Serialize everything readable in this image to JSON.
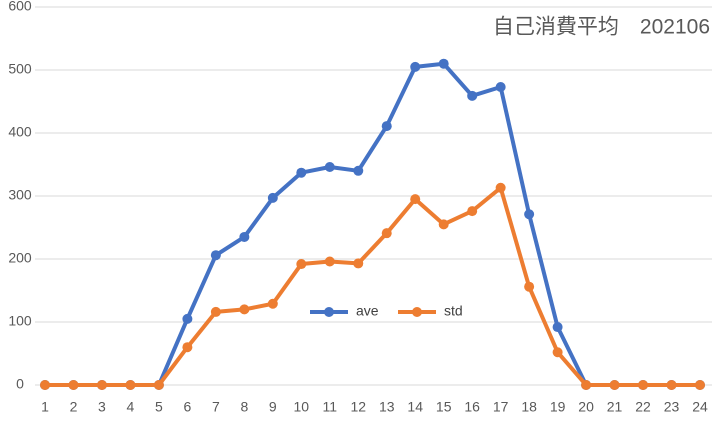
{
  "chart_data": {
    "type": "line",
    "title": "自己消費平均　202106",
    "categories": [
      "1",
      "2",
      "3",
      "4",
      "5",
      "6",
      "7",
      "8",
      "9",
      "10",
      "11",
      "12",
      "13",
      "14",
      "15",
      "16",
      "17",
      "18",
      "19",
      "20",
      "21",
      "22",
      "23",
      "24"
    ],
    "series": [
      {
        "name": "ave",
        "color": "#4472c4",
        "values": [
          0,
          0,
          0,
          0,
          0,
          105,
          206,
          235,
          297,
          337,
          346,
          340,
          411,
          505,
          510,
          459,
          473,
          271,
          92,
          0,
          0,
          0,
          0,
          0
        ]
      },
      {
        "name": "std",
        "color": "#ed7d31",
        "values": [
          0,
          0,
          0,
          0,
          0,
          60,
          116,
          120,
          129,
          192,
          196,
          193,
          241,
          295,
          255,
          276,
          313,
          156,
          52,
          0,
          0,
          0,
          0,
          0
        ]
      }
    ],
    "ylim": [
      0,
      600
    ],
    "yticks": [
      0,
      100,
      200,
      300,
      400,
      500,
      600
    ],
    "grid": true,
    "legend": "center"
  }
}
